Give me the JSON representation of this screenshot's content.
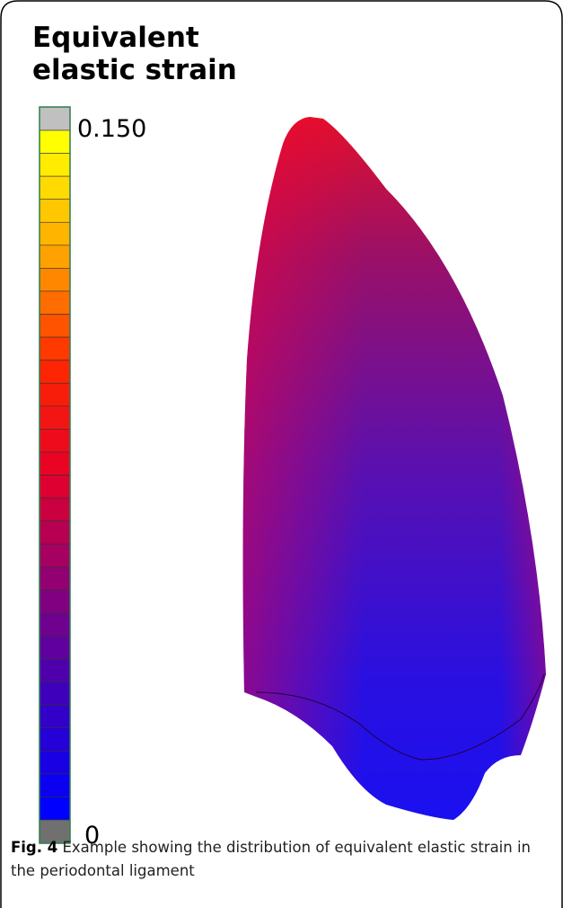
{
  "figure": {
    "title": [
      "Equivalent",
      "elastic strain"
    ],
    "legend": {
      "max_label": "0.150",
      "min_label": "0"
    }
  },
  "caption": {
    "label": "Fig. 4",
    "text": "Example showing the distribution of equivalent elastic strain in the periodontal ligament"
  }
}
